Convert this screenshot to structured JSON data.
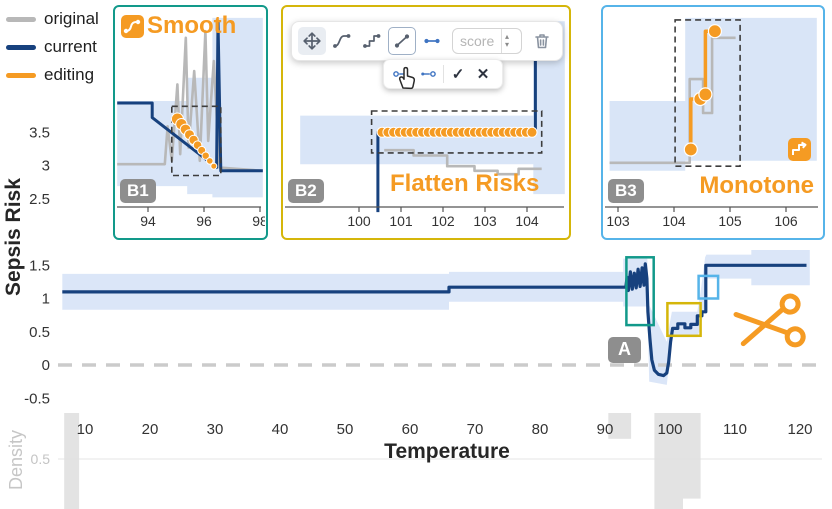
{
  "colors": {
    "original": "#b8b8b8",
    "current": "#17417E",
    "editing": "#F59B23",
    "band": "#cfdef5",
    "teal": "#12998A",
    "yellow": "#D5B60A",
    "lightblue": "#56B4E9",
    "badge_bg": "#8E8E8E",
    "zero_dash": "#cbcbcb",
    "axis_text": "#333333",
    "density_text": "#c4c4c4",
    "density_bar": "#e0e0e0",
    "toolbar_blue": "#3F74C2"
  },
  "legend": {
    "items": [
      {
        "label": "original",
        "key": "original"
      },
      {
        "label": "current",
        "key": "current"
      },
      {
        "label": "editing",
        "key": "editing"
      }
    ]
  },
  "figure": {
    "y_label": "Sepsis Risk",
    "x_label": "Temperature",
    "density_label": "Density"
  },
  "icons": {
    "confirm": "✓",
    "cancel": "✕",
    "spin_up": "▴",
    "spin_down": "▾"
  },
  "main": {
    "a_badge": "A"
  },
  "panels": {
    "b1": {
      "badge": "B1",
      "title": "Smooth",
      "border": "teal"
    },
    "b2": {
      "badge": "B2",
      "title": "Flatten Risks",
      "border": "yellow",
      "toolbar": {
        "score_placeholder": "score"
      }
    },
    "b3": {
      "badge": "B3",
      "title": "Monotone",
      "border": "lightblue"
    }
  },
  "chart_data": {
    "type": "line",
    "title": "Sepsis Risk vs Temperature (GAM shape function with editing insets B1-B3)",
    "xlabel": "Temperature",
    "ylabel": "Sepsis Risk",
    "main": {
      "x_ticks": [
        10,
        20,
        30,
        40,
        50,
        60,
        70,
        80,
        90,
        100,
        110,
        120
      ],
      "y_ticks": [
        3.5,
        3,
        2.5,
        1.5,
        1,
        0.5,
        0,
        -0.5
      ],
      "x_range": [
        6.5,
        121.5
      ],
      "zero_line": 0,
      "current": [
        [
          6.5,
          1.1
        ],
        [
          66,
          1.1
        ],
        [
          66,
          1.17
        ],
        [
          93.2,
          1.17
        ],
        [
          93.4,
          1.32
        ],
        [
          93.6,
          1.12
        ],
        [
          93.9,
          1.4
        ],
        [
          94.2,
          1.14
        ],
        [
          94.5,
          1.38
        ],
        [
          94.8,
          1.16
        ],
        [
          95.1,
          1.44
        ],
        [
          95.4,
          1.18
        ],
        [
          95.7,
          1.46
        ],
        [
          96,
          1.2
        ],
        [
          96.2,
          1.52
        ],
        [
          96.45,
          1.3
        ],
        [
          96.6,
          0.8
        ],
        [
          96.9,
          0.4
        ],
        [
          97.2,
          0.08
        ],
        [
          97.6,
          -0.08
        ],
        [
          98.2,
          -0.14
        ],
        [
          99,
          -0.16
        ],
        [
          99.5,
          -0.12
        ],
        [
          99.8,
          0.05
        ],
        [
          100.1,
          0.35
        ],
        [
          100.4,
          0.55
        ],
        [
          101.2,
          0.55
        ],
        [
          101.2,
          0.62
        ],
        [
          102.3,
          0.62
        ],
        [
          102.3,
          0.56
        ],
        [
          103.2,
          0.56
        ],
        [
          103.2,
          0.61
        ],
        [
          104.2,
          0.61
        ],
        [
          104.2,
          0.74
        ],
        [
          104.9,
          0.74
        ],
        [
          104.9,
          0.8
        ],
        [
          105.5,
          0.8
        ],
        [
          105.5,
          1.5
        ],
        [
          121,
          1.5
        ]
      ],
      "band": [
        [
          6.5,
          1.37,
          0.83
        ],
        [
          66,
          1.37,
          0.83
        ],
        [
          66,
          1.4,
          0.95
        ],
        [
          92.8,
          1.4,
          0.95
        ],
        [
          92.8,
          1.6,
          0.88
        ],
        [
          96.5,
          1.6,
          0.88
        ],
        [
          96.8,
          0.9,
          -0.25
        ],
        [
          99.5,
          0.35,
          -0.3
        ],
        [
          100,
          0.65,
          0.15
        ],
        [
          100.3,
          0.8,
          0.42
        ],
        [
          104.2,
          0.8,
          0.42
        ],
        [
          104.7,
          1.1,
          0.55
        ],
        [
          105.4,
          1.62,
          0.95
        ],
        [
          105.6,
          1.66,
          1.3
        ],
        [
          112.5,
          1.66,
          1.3
        ],
        [
          112.5,
          1.73,
          1.2
        ],
        [
          121.5,
          1.73,
          1.2
        ]
      ],
      "boxes": [
        {
          "ref": "B1",
          "color": "teal",
          "x": [
            93.3,
            97.5
          ],
          "y": [
            0.6,
            1.62
          ]
        },
        {
          "ref": "B2",
          "color": "yellow",
          "x": [
            99.6,
            104.7
          ],
          "y": [
            0.44,
            0.93
          ]
        },
        {
          "ref": "B3",
          "color": "lightblue",
          "x": [
            104.4,
            107.4
          ],
          "y": [
            1.0,
            1.34
          ]
        }
      ],
      "density": {
        "tick": 0.5,
        "bars": [
          [
            6.8,
            9.1,
            1.2
          ],
          [
            90.5,
            94,
            0.28
          ],
          [
            97.6,
            102,
            1.2
          ],
          [
            102,
            104.7,
            0.93
          ]
        ]
      }
    },
    "b1": {
      "x_ticks": [
        94,
        96,
        98
      ],
      "band": [
        [
          92.9,
          4.0,
          2.72
        ],
        [
          95.4,
          4.0,
          2.72
        ],
        [
          95.4,
          4.35,
          2.6
        ],
        [
          96.3,
          4.35,
          2.6
        ],
        [
          96.3,
          5.25,
          2.55
        ],
        [
          98.1,
          5.25,
          2.55
        ]
      ],
      "original": [
        [
          92.9,
          3.05
        ],
        [
          94.6,
          3.05
        ],
        [
          94.7,
          3.62
        ],
        [
          94.85,
          3.1
        ],
        [
          95.05,
          4.25
        ],
        [
          95.15,
          3.2
        ],
        [
          95.35,
          4.95
        ],
        [
          95.45,
          3.3
        ],
        [
          95.65,
          4.45
        ],
        [
          95.85,
          3.1
        ],
        [
          96.05,
          5.05
        ],
        [
          96.15,
          3.4
        ],
        [
          96.35,
          4.6
        ],
        [
          96.55,
          3.0
        ],
        [
          98.1,
          2.95
        ]
      ],
      "current": [
        [
          92.9,
          3.97
        ],
        [
          94.15,
          3.97
        ],
        [
          94.15,
          3.75
        ],
        [
          96.45,
          3.0
        ],
        [
          96.5,
          5.2
        ],
        [
          96.6,
          2.95
        ],
        [
          98.1,
          2.95
        ]
      ],
      "dots_interp": {
        "from": [
          95.05,
          3.73
        ],
        "to": [
          96.35,
          3.02
        ],
        "count": 10,
        "r_from": 6,
        "r_to": 3
      },
      "select_rect": {
        "x": [
          94.85,
          96.6
        ],
        "y": [
          2.88,
          3.92
        ]
      }
    },
    "b2": {
      "x_ticks": [
        100,
        101,
        102,
        103,
        104
      ],
      "band": [
        [
          98.6,
          3.78,
          3.05
        ],
        [
          104.15,
          3.78,
          3.05
        ],
        [
          104.15,
          5.2,
          2.6
        ],
        [
          104.9,
          5.2,
          2.6
        ]
      ],
      "original": [
        [
          100.6,
          3.26
        ],
        [
          101.3,
          3.26
        ],
        [
          101.3,
          3.18
        ],
        [
          102.1,
          3.18
        ],
        [
          102.1,
          3.02
        ],
        [
          102.75,
          3.02
        ],
        [
          102.75,
          2.95
        ],
        [
          103.3,
          2.95
        ],
        [
          103.3,
          2.9
        ],
        [
          103.8,
          2.9
        ],
        [
          103.8,
          2.98
        ],
        [
          104.35,
          2.98
        ]
      ],
      "current": [
        [
          100.45,
          2.33
        ],
        [
          100.45,
          3.53
        ],
        [
          104.2,
          3.53
        ],
        [
          104.2,
          5.15
        ]
      ],
      "dots_interp": {
        "from": [
          100.55,
          3.53
        ],
        "to": [
          104.12,
          3.53
        ],
        "count": 27,
        "r_from": 5,
        "r_to": 5
      },
      "select_rect": {
        "x": [
          100.3,
          104.35
        ],
        "y": [
          3.22,
          3.85
        ]
      }
    },
    "b3": {
      "x_ticks": [
        103,
        104,
        105,
        106
      ],
      "band": [
        [
          102.85,
          4.0,
          2.95
        ],
        [
          104.2,
          4.0,
          2.95
        ],
        [
          104.2,
          5.25,
          3.1
        ],
        [
          106.55,
          5.25,
          3.1
        ]
      ],
      "original": [
        [
          102.85,
          3.07
        ],
        [
          104.28,
          3.07
        ],
        [
          104.28,
          4.33
        ],
        [
          104.52,
          4.33
        ],
        [
          104.52,
          3.82
        ],
        [
          104.68,
          3.82
        ],
        [
          104.68,
          4.95
        ],
        [
          105.1,
          4.95
        ]
      ],
      "editing_line": [
        [
          104.3,
          3.27
        ],
        [
          104.3,
          4.03
        ],
        [
          104.47,
          4.03
        ],
        [
          104.47,
          4.1
        ],
        [
          104.56,
          4.1
        ],
        [
          104.56,
          5.05
        ],
        [
          104.73,
          5.05
        ]
      ],
      "editing_dots": [
        [
          104.3,
          3.27
        ],
        [
          104.47,
          4.03
        ],
        [
          104.56,
          4.1
        ],
        [
          104.73,
          5.05
        ]
      ],
      "dot_r": 6.5,
      "select_rect": {
        "x": [
          104.02,
          105.18
        ],
        "y": [
          3.02,
          5.22
        ]
      }
    }
  }
}
